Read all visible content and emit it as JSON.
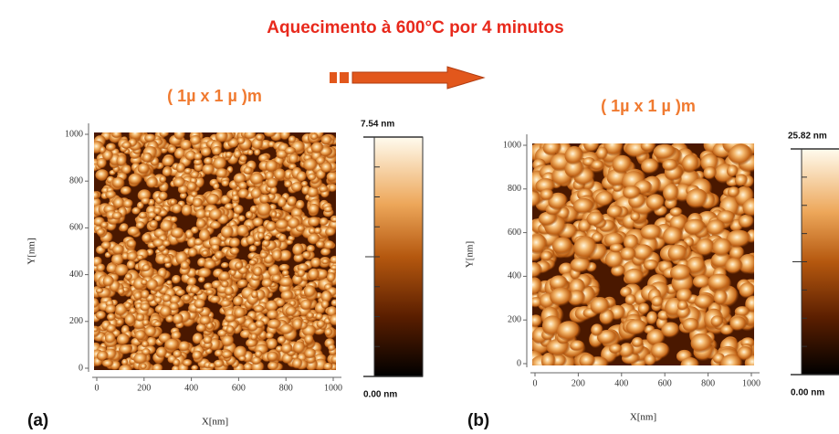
{
  "title": "Aquecimento à 600°C por 4 minutos",
  "panels": [
    {
      "label": "(a)",
      "scale_label": "( 1µ x 1 µ )m",
      "x_axis_label": "X[nm]",
      "y_axis_label": "Y[nm]",
      "ticks": [
        "0",
        "200",
        "400",
        "600",
        "800",
        "1000"
      ],
      "colorbar_max": "7.54 nm",
      "colorbar_min": "0.00 nm"
    },
    {
      "label": "(b)",
      "scale_label": "( 1µ x 1 µ )m",
      "x_axis_label": "X[nm]",
      "y_axis_label": "Y[nm]",
      "ticks": [
        "0",
        "200",
        "400",
        "600",
        "800",
        "1000"
      ],
      "colorbar_max": "25.82 nm",
      "colorbar_min": "0.00 nm"
    }
  ]
}
